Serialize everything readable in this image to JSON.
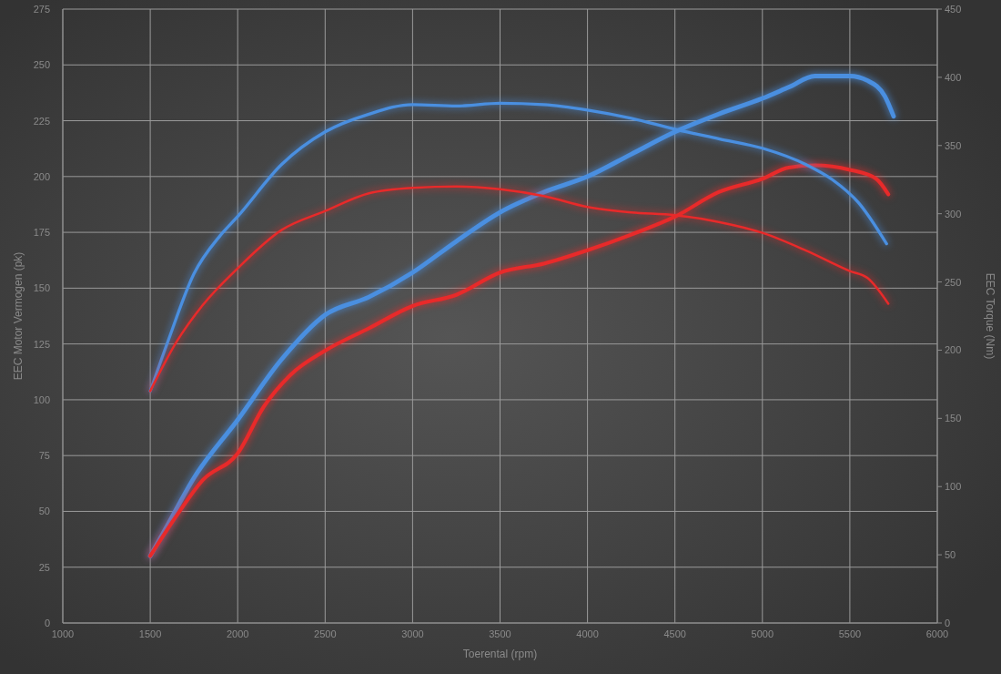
{
  "chart_data": {
    "type": "line",
    "xlabel": "Toerental (rpm)",
    "ylabel": "EEC Motor Vermogen (pk)",
    "y2label": "EEC Torque (Nm)",
    "xlim": [
      1000,
      6000
    ],
    "xticks": [
      1000,
      1500,
      2000,
      2500,
      3000,
      3500,
      4000,
      4500,
      5000,
      5500,
      6000
    ],
    "ylim": [
      0,
      275
    ],
    "yticks": [
      0,
      25,
      50,
      75,
      100,
      125,
      150,
      175,
      200,
      225,
      250,
      275
    ],
    "y2lim": [
      0,
      450
    ],
    "y2ticks": [
      0,
      50,
      100,
      150,
      200,
      250,
      300,
      350,
      400,
      450
    ],
    "grid": true,
    "marker": "none",
    "line_style": "solid",
    "series": [
      {
        "color": "#4a8fe0",
        "x": [
          1500,
          1600,
          1750,
          2000,
          2250,
          2500,
          2750,
          3000,
          3250,
          3500,
          3750,
          4000,
          4250,
          4500,
          4750,
          5000,
          5150,
          5300,
          5500,
          5600,
          5700,
          5750
        ],
        "values": [
          30,
          44,
          65,
          91,
          118,
          138,
          146,
          157,
          171,
          184,
          193,
          200,
          210,
          220,
          228,
          235,
          240,
          245,
          245,
          243,
          236,
          227
        ]
      },
      {
        "color": "#e82a2a",
        "x": [
          1500,
          1650,
          1800,
          2000,
          2150,
          2300,
          2500,
          2750,
          3000,
          3250,
          3500,
          3750,
          4000,
          4250,
          4500,
          4750,
          5000,
          5150,
          5300,
          5500,
          5650,
          5720
        ],
        "values": [
          30,
          48,
          64,
          76,
          97,
          111,
          122,
          132,
          142,
          147,
          157,
          161,
          167,
          174,
          182,
          193,
          199,
          204,
          205,
          203,
          199,
          192
        ]
      },
      {
        "color": "#4a8fe0",
        "axis": "y2",
        "x": [
          1500,
          1600,
          1750,
          1900,
          2000,
          2250,
          2500,
          2750,
          3000,
          3250,
          3500,
          3750,
          4000,
          4250,
          4500,
          4750,
          5000,
          5250,
          5400,
          5550,
          5710
        ],
        "values": [
          170,
          206,
          256,
          284,
          298,
          336,
          360,
          373,
          380,
          379,
          381,
          380,
          376,
          370,
          362,
          355,
          348,
          336,
          325,
          308,
          278
        ]
      },
      {
        "color": "#e82a2a",
        "axis": "y2",
        "x": [
          1500,
          1650,
          1800,
          2000,
          2250,
          2500,
          2750,
          3000,
          3250,
          3500,
          3750,
          4000,
          4250,
          4500,
          4750,
          5000,
          5250,
          5500,
          5600,
          5720
        ],
        "values": [
          170,
          206,
          233,
          260,
          288,
          302,
          315,
          319,
          320,
          318,
          313,
          305,
          301,
          299,
          294,
          286,
          273,
          258,
          253,
          234
        ]
      }
    ]
  }
}
